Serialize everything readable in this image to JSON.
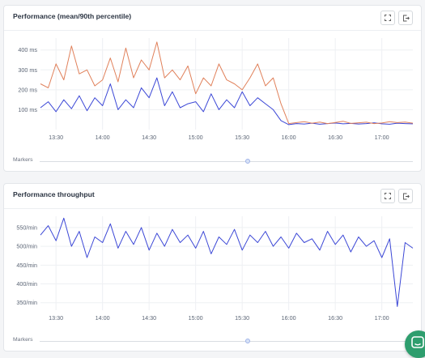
{
  "panels": [
    {
      "title": "Performance (mean/90th percentile)",
      "markers_label": "Markers"
    },
    {
      "title": "Performance throughput",
      "markers_label": "Markers"
    }
  ],
  "icons": {
    "expand": "expand-icon",
    "export": "export-icon",
    "chat": "chat-icon"
  },
  "colors": {
    "mean": "#3b47d6",
    "p90": "#e0805a",
    "throughput": "#3b47d6",
    "chat": "#2e9e6e"
  },
  "chart_data": [
    {
      "type": "line",
      "title": "Performance (mean/90th percentile)",
      "x_ticks": [
        "13:30",
        "14:00",
        "14:30",
        "15:00",
        "15:30",
        "16:00",
        "16:30",
        "17:00"
      ],
      "y_ticks": [
        "100 ms",
        "200 ms",
        "300 ms",
        "400 ms"
      ],
      "xlim": [
        "13:20",
        "17:20"
      ],
      "ylim": [
        0,
        460
      ],
      "grid": true,
      "series": [
        {
          "color": "#3b47d6",
          "x": [
            "13:20",
            "13:25",
            "13:30",
            "13:35",
            "13:40",
            "13:45",
            "13:50",
            "13:55",
            "14:00",
            "14:05",
            "14:10",
            "14:15",
            "14:20",
            "14:25",
            "14:30",
            "14:35",
            "14:40",
            "14:45",
            "14:50",
            "14:55",
            "15:00",
            "15:05",
            "15:10",
            "15:15",
            "15:20",
            "15:25",
            "15:30",
            "15:35",
            "15:40",
            "15:45",
            "15:50",
            "15:55",
            "16:00",
            "16:05",
            "16:10",
            "16:15",
            "16:20",
            "16:25",
            "16:30",
            "16:35",
            "16:40",
            "16:45",
            "16:50",
            "16:55",
            "17:00",
            "17:05",
            "17:10",
            "17:15",
            "17:20"
          ],
          "values": [
            110,
            140,
            90,
            150,
            105,
            170,
            95,
            160,
            120,
            230,
            100,
            150,
            110,
            210,
            160,
            260,
            120,
            190,
            110,
            130,
            140,
            90,
            180,
            100,
            150,
            110,
            190,
            120,
            160,
            130,
            100,
            45,
            25,
            30,
            28,
            32,
            27,
            30,
            33,
            29,
            31,
            28,
            30,
            34,
            29,
            27,
            32,
            30,
            29
          ]
        },
        {
          "color": "#e0805a",
          "x": [
            "13:20",
            "13:25",
            "13:30",
            "13:35",
            "13:40",
            "13:45",
            "13:50",
            "13:55",
            "14:00",
            "14:05",
            "14:10",
            "14:15",
            "14:20",
            "14:25",
            "14:30",
            "14:35",
            "14:40",
            "14:45",
            "14:50",
            "14:55",
            "15:00",
            "15:05",
            "15:10",
            "15:15",
            "15:20",
            "15:25",
            "15:30",
            "15:35",
            "15:40",
            "15:45",
            "15:50",
            "15:55",
            "16:00",
            "16:05",
            "16:10",
            "16:15",
            "16:20",
            "16:25",
            "16:30",
            "16:35",
            "16:40",
            "16:45",
            "16:50",
            "16:55",
            "17:00",
            "17:05",
            "17:10",
            "17:15",
            "17:20"
          ],
          "values": [
            230,
            210,
            330,
            250,
            420,
            280,
            300,
            220,
            250,
            360,
            240,
            410,
            260,
            350,
            300,
            440,
            260,
            300,
            250,
            320,
            180,
            260,
            220,
            330,
            250,
            230,
            200,
            260,
            330,
            220,
            260,
            130,
            30,
            35,
            40,
            32,
            38,
            30,
            36,
            42,
            31,
            34,
            37,
            30,
            33,
            40,
            35,
            38,
            32
          ]
        }
      ]
    },
    {
      "type": "line",
      "title": "Performance throughput",
      "x_ticks": [
        "13:30",
        "14:00",
        "14:30",
        "15:00",
        "15:30",
        "16:00",
        "16:30",
        "17:00"
      ],
      "y_ticks": [
        "350/min",
        "400/min",
        "450/min",
        "500/min",
        "550/min"
      ],
      "xlim": [
        "13:20",
        "17:20"
      ],
      "ylim": [
        330,
        580
      ],
      "grid": true,
      "series": [
        {
          "color": "#3b47d6",
          "x": [
            "13:20",
            "13:25",
            "13:30",
            "13:35",
            "13:40",
            "13:45",
            "13:50",
            "13:55",
            "14:00",
            "14:05",
            "14:10",
            "14:15",
            "14:20",
            "14:25",
            "14:30",
            "14:35",
            "14:40",
            "14:45",
            "14:50",
            "14:55",
            "15:00",
            "15:05",
            "15:10",
            "15:15",
            "15:20",
            "15:25",
            "15:30",
            "15:35",
            "15:40",
            "15:45",
            "15:50",
            "15:55",
            "16:00",
            "16:05",
            "16:10",
            "16:15",
            "16:20",
            "16:25",
            "16:30",
            "16:35",
            "16:40",
            "16:45",
            "16:50",
            "16:55",
            "17:00",
            "17:05",
            "17:10",
            "17:15",
            "17:20"
          ],
          "values": [
            530,
            555,
            515,
            575,
            500,
            540,
            470,
            525,
            510,
            560,
            495,
            540,
            505,
            550,
            490,
            535,
            500,
            545,
            510,
            530,
            495,
            540,
            480,
            525,
            505,
            545,
            490,
            530,
            510,
            540,
            500,
            525,
            495,
            535,
            510,
            520,
            490,
            540,
            505,
            530,
            485,
            525,
            500,
            515,
            470,
            520,
            340,
            510,
            495
          ]
        }
      ]
    }
  ]
}
